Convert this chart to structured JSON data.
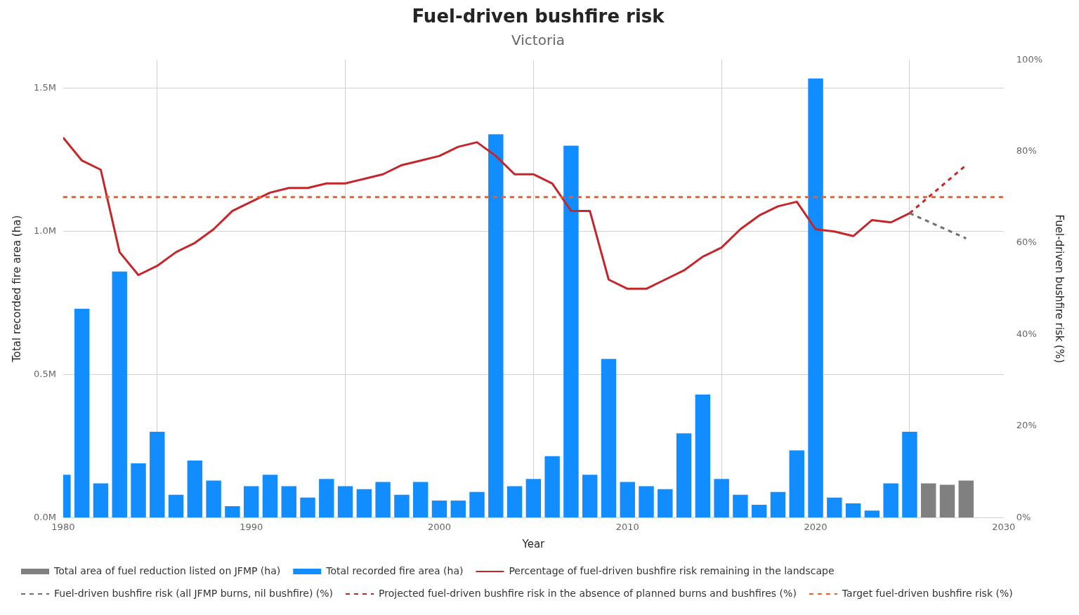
{
  "chart_data": {
    "type": "bar",
    "title": "Fuel-driven bushfire risk",
    "subtitle": "Victoria",
    "xlabel": "Year",
    "ylabel": "Total recorded fire area (ha)",
    "y2label": "Fuel-driven bushfire risk (%)",
    "xlim": [
      1980,
      2030
    ],
    "xticks": [
      1980,
      1990,
      2000,
      2010,
      2020,
      2030
    ],
    "ylim": [
      0,
      1600000
    ],
    "yticks": [
      {
        "value": 0,
        "label": "0.0M"
      },
      {
        "value": 500000,
        "label": "0.5M"
      },
      {
        "value": 1000000,
        "label": "1.0M"
      },
      {
        "value": 1500000,
        "label": "1.5M"
      }
    ],
    "y2lim": [
      0,
      100
    ],
    "y2ticks": [
      {
        "value": 0,
        "label": "0%"
      },
      {
        "value": 20,
        "label": "20%"
      },
      {
        "value": 40,
        "label": "40%"
      },
      {
        "value": 60,
        "label": "60%"
      },
      {
        "value": 80,
        "label": "80%"
      },
      {
        "value": 100,
        "label": "100%"
      }
    ],
    "grid": true,
    "legend": "bottom",
    "series": [
      {
        "name": "Total area of fuel reduction listed on JFMP (ha)",
        "color": "#808080",
        "x": [
          2026,
          2027,
          2028
        ],
        "values": [
          120000,
          115000,
          130000
        ]
      },
      {
        "name": "Total recorded fire area (ha)",
        "color": "#118dff",
        "x": [
          1980,
          1981,
          1982,
          1983,
          1984,
          1985,
          1986,
          1987,
          1988,
          1989,
          1990,
          1991,
          1992,
          1993,
          1994,
          1995,
          1996,
          1997,
          1998,
          1999,
          2000,
          2001,
          2002,
          2003,
          2004,
          2005,
          2006,
          2007,
          2008,
          2009,
          2010,
          2011,
          2012,
          2013,
          2014,
          2015,
          2016,
          2017,
          2018,
          2019,
          2020,
          2021,
          2022,
          2023,
          2024,
          2025
        ],
        "values": [
          150000,
          730000,
          120000,
          860000,
          190000,
          300000,
          80000,
          200000,
          130000,
          40000,
          110000,
          150000,
          110000,
          70000,
          135000,
          110000,
          100000,
          125000,
          80000,
          125000,
          60000,
          60000,
          90000,
          1340000,
          110000,
          135000,
          215000,
          1300000,
          150000,
          555000,
          125000,
          110000,
          100000,
          295000,
          430000,
          135000,
          80000,
          45000,
          90000,
          235000,
          1535000,
          70000,
          50000,
          25000,
          120000,
          300000
        ]
      },
      {
        "name": "Percentage of fuel-driven bushfire risk remaining in the landscape",
        "type": "line",
        "axis": "y2",
        "color": "#c4262a",
        "line_style": "solid",
        "x": [
          1980,
          1981,
          1982,
          1983,
          1984,
          1985,
          1986,
          1987,
          1988,
          1989,
          1990,
          1991,
          1992,
          1993,
          1994,
          1995,
          1996,
          1997,
          1998,
          1999,
          2000,
          2001,
          2002,
          2003,
          2004,
          2005,
          2006,
          2007,
          2008,
          2009,
          2010,
          2011,
          2012,
          2013,
          2014,
          2015,
          2016,
          2017,
          2018,
          2019,
          2020,
          2021,
          2022,
          2023,
          2024,
          2025
        ],
        "values": [
          83,
          78,
          76,
          58,
          53,
          55,
          58,
          60,
          63,
          67,
          69,
          71,
          72,
          72,
          73,
          73,
          74,
          75,
          77,
          78,
          79,
          81,
          82,
          79,
          75,
          75,
          73,
          67,
          67,
          52,
          50,
          50,
          52,
          54,
          57,
          59,
          63,
          66,
          68,
          69,
          63,
          62.5,
          61.5,
          65,
          64.5,
          66.5
        ]
      },
      {
        "name": "Fuel-driven bushfire risk (all JFMP burns, nil bushfire) (%)",
        "type": "line",
        "axis": "y2",
        "color": "#6f6f6f",
        "line_style": "dashed",
        "x": [
          2025,
          2028
        ],
        "values": [
          66.5,
          61
        ]
      },
      {
        "name": "Projected fuel-driven bushfire risk in the absence of planned burns and bushfires (%)",
        "type": "line",
        "axis": "y2",
        "color": "#c4262a",
        "line_style": "dashed",
        "x": [
          2025,
          2028
        ],
        "values": [
          66.5,
          77
        ]
      }
    ],
    "ref_lines": [
      {
        "axis": "y2",
        "value": 70,
        "label": "Target fuel-driven bushfire risk (%)",
        "color": "#e8612c",
        "line_style": "dashed"
      }
    ]
  }
}
